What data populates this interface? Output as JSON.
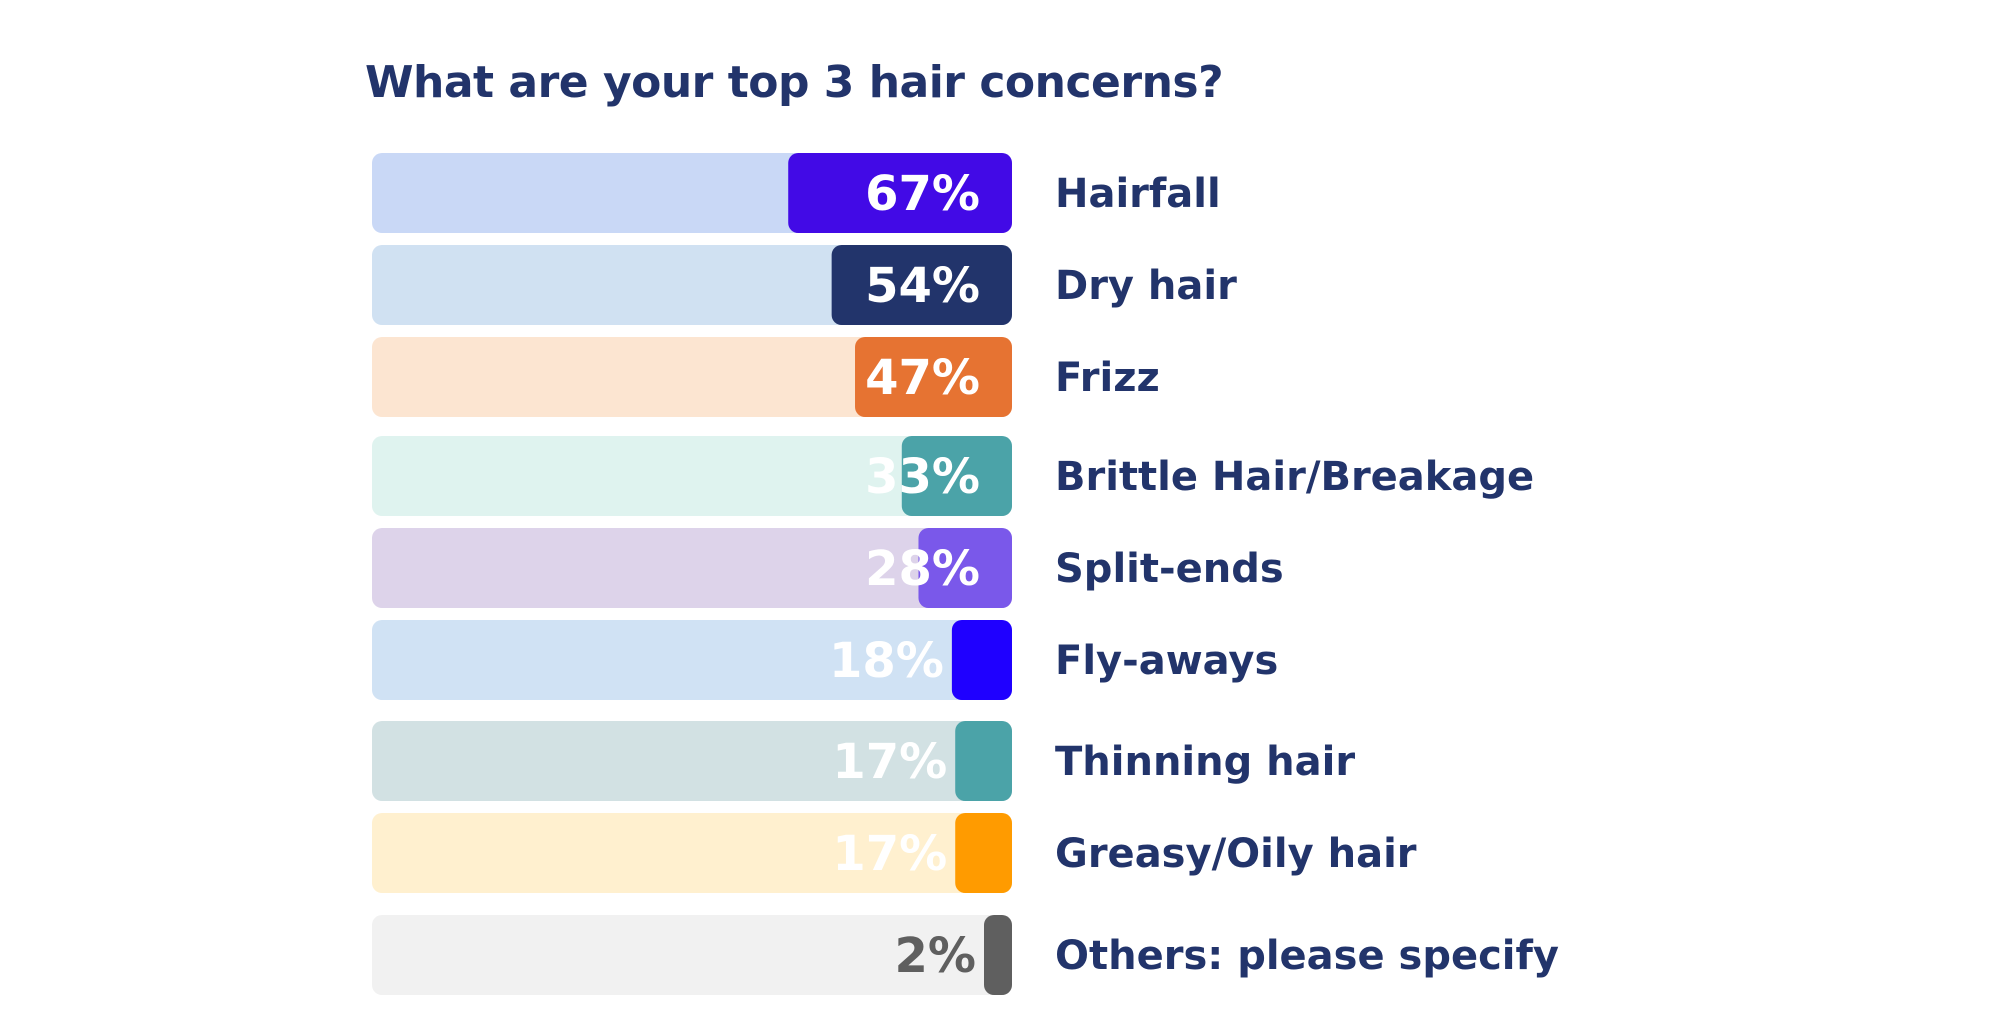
{
  "chart_data": {
    "type": "bar",
    "orientation": "horizontal",
    "title": "What are your top 3 hair concerns?",
    "xlabel": "",
    "ylabel": "",
    "xlim": [
      0,
      67
    ],
    "grid": false,
    "legend": "none",
    "categories": [
      "Hairfall",
      "Dry hair",
      "Frizz",
      "Brittle Hair/Breakage",
      "Split-ends",
      "Fly-aways",
      "Thinning hair",
      "Greasy/Oily hair",
      "Others: please specify"
    ],
    "values": [
      67,
      54,
      47,
      33,
      28,
      18,
      17,
      17,
      2
    ],
    "value_labels": [
      "67%",
      "54%",
      "47%",
      "33%",
      "28%",
      "18%",
      "17%",
      "17%",
      "2%"
    ],
    "bar_colors": [
      "#420ae6",
      "#22346b",
      "#e67332",
      "#4ba3a8",
      "#7a58ea",
      "#1f00ff",
      "#4ba3a8",
      "#ff9b00",
      "#5f5f5f"
    ],
    "track_colors": [
      "#c9d8f6",
      "#d0e1f2",
      "#fce5d1",
      "#dff3ef",
      "#ddd3ea",
      "#d0e2f4",
      "#d2e1e3",
      "#fff0cf",
      "#f1f1f1"
    ],
    "value_label_colors": [
      "#ffffff",
      "#ffffff",
      "#ffffff",
      "#ffffff",
      "#ffffff",
      "#ffffff",
      "#ffffff",
      "#ffffff",
      "#5f5f5f"
    ]
  },
  "colors": {
    "title": "#22346b",
    "category_label": "#22346b",
    "background": "#ffffff"
  }
}
